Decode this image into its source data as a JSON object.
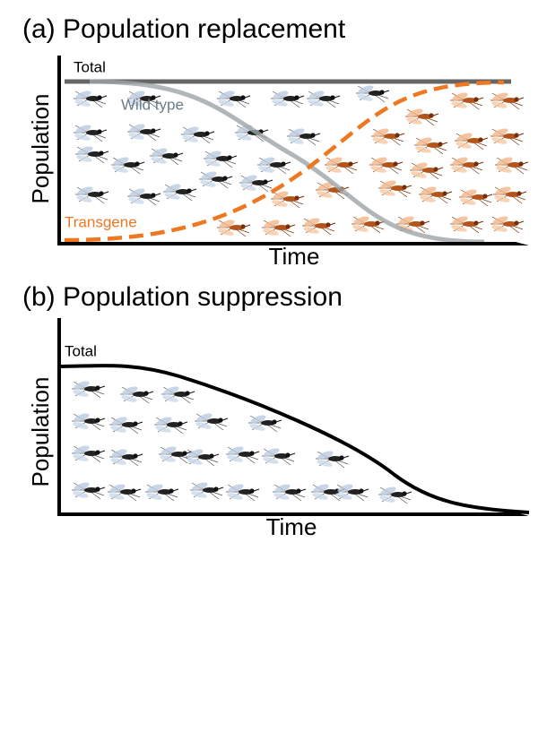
{
  "panels": [
    {
      "title": "(a) Population replacement",
      "y_axis": "Population",
      "x_axis": "Time",
      "labels": {
        "total": "Total",
        "wild_type": "Wild type",
        "transgene": "Transgene"
      }
    },
    {
      "title": "(b) Population suppression",
      "y_axis": "Population",
      "x_axis": "Time",
      "labels": {
        "total": "Total"
      }
    }
  ]
}
